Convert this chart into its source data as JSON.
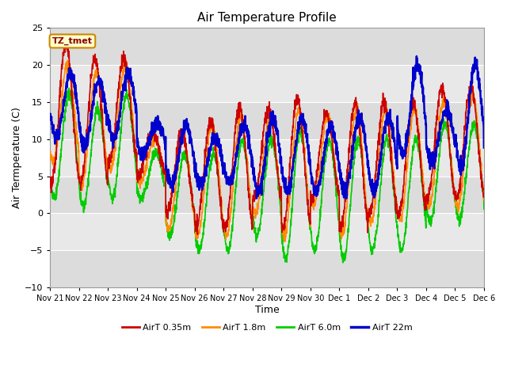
{
  "title": "Air Temperature Profile",
  "xlabel": "Time",
  "ylabel": "Air Termperature (C)",
  "ylim": [
    -10,
    25
  ],
  "yticks": [
    -10,
    -5,
    0,
    5,
    10,
    15,
    20,
    25
  ],
  "x_labels": [
    "Nov 21",
    "Nov 22",
    "Nov 23",
    "Nov 24",
    "Nov 25",
    "Nov 26",
    "Nov 27",
    "Nov 28",
    "Nov 29",
    "Nov 30",
    "Dec 1",
    "Dec 2",
    "Dec 3",
    "Dec 4",
    "Dec 5",
    "Dec 6"
  ],
  "series": {
    "AirT 0.35m": {
      "color": "#CC0000",
      "lw": 1.2
    },
    "AirT 1.8m": {
      "color": "#FF8C00",
      "lw": 1.2
    },
    "AirT 6.0m": {
      "color": "#00CC00",
      "lw": 1.2
    },
    "AirT 22m": {
      "color": "#0000CC",
      "lw": 1.8
    }
  },
  "annotation_label": "TZ_tmet",
  "annotation_color": "#8B0000",
  "annotation_bg": "#FFFFCC",
  "annotation_border": "#CC8800",
  "bg_band1_color": "#DCDCDC",
  "bg_band2_color": "#E8E8E8",
  "grid_color": "#FFFFFF",
  "fig_bg": "#FFFFFF",
  "ax_bg": "#E8E8E8"
}
